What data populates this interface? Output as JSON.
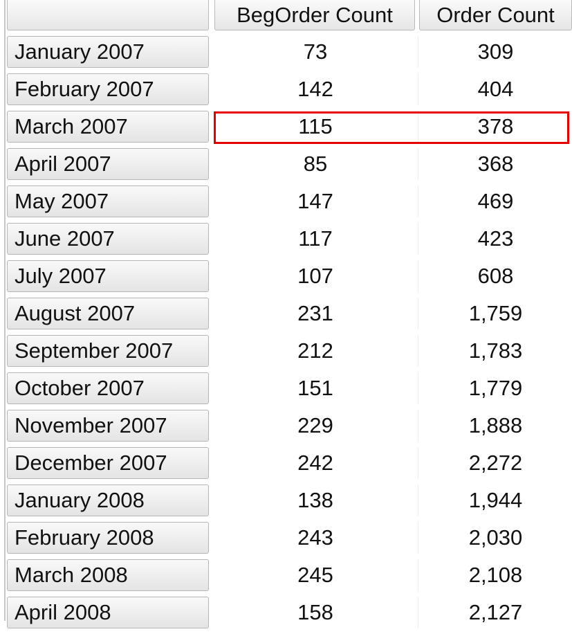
{
  "columns": [
    "",
    "BegOrder Count",
    "Order Count"
  ],
  "rows": [
    {
      "label": "January 2007",
      "beg": "73",
      "orders": "309"
    },
    {
      "label": "February 2007",
      "beg": "142",
      "orders": "404"
    },
    {
      "label": "March 2007",
      "beg": "115",
      "orders": "378"
    },
    {
      "label": "April 2007",
      "beg": "85",
      "orders": "368"
    },
    {
      "label": "May 2007",
      "beg": "147",
      "orders": "469"
    },
    {
      "label": "June 2007",
      "beg": "117",
      "orders": "423"
    },
    {
      "label": "July 2007",
      "beg": "107",
      "orders": "608"
    },
    {
      "label": "August 2007",
      "beg": "231",
      "orders": "1,759"
    },
    {
      "label": "September 2007",
      "beg": "212",
      "orders": "1,783"
    },
    {
      "label": "October 2007",
      "beg": "151",
      "orders": "1,779"
    },
    {
      "label": "November 2007",
      "beg": "229",
      "orders": "1,888"
    },
    {
      "label": "December 2007",
      "beg": "242",
      "orders": "2,272"
    },
    {
      "label": "January 2008",
      "beg": "138",
      "orders": "1,944"
    },
    {
      "label": "February 2008",
      "beg": "243",
      "orders": "2,030"
    },
    {
      "label": "March 2008",
      "beg": "245",
      "orders": "2,108"
    },
    {
      "label": "April 2008",
      "beg": "158",
      "orders": "2,127"
    }
  ],
  "highlighted_row": "March 2007",
  "highlight_color": "#e60000"
}
